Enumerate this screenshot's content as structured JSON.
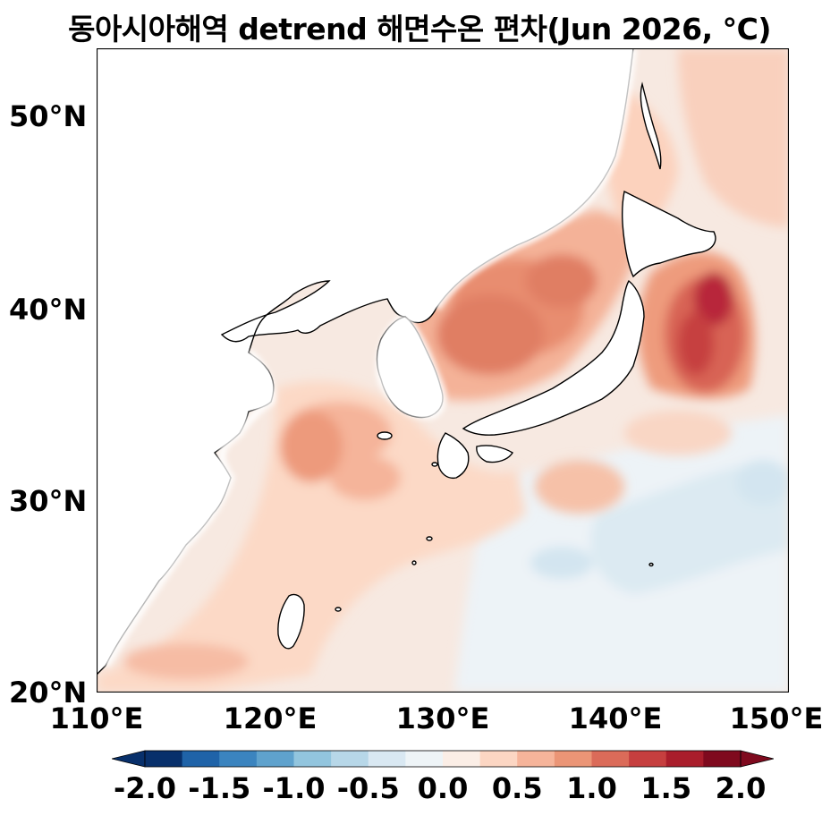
{
  "title": "동아시아해역 detrend 해면수온 편차(Jun 2026, °C)",
  "y_ticks": [
    "50°N",
    "40°N",
    "30°N",
    "20°N"
  ],
  "x_ticks": [
    "110°E",
    "120°E",
    "130°E",
    "140°E",
    "150°E"
  ],
  "colorbar": {
    "ticks": [
      "-2.0",
      "-1.5",
      "-1.0",
      "-0.5",
      "0.0",
      "0.5",
      "1.0",
      "1.5",
      "2.0"
    ],
    "colors": [
      "#08306b",
      "#1f63a8",
      "#3b84bf",
      "#5fa2cd",
      "#92c5de",
      "#b7d7e8",
      "#d9e8f2",
      "#eef4f7",
      "#fbeee6",
      "#fcd6c3",
      "#f6b49a",
      "#eb9576",
      "#db6b59",
      "#c63f3f",
      "#a91d2b",
      "#7f0a1e"
    ]
  },
  "legend_scale": "RdBu_r diverging, anomaly in °C"
}
